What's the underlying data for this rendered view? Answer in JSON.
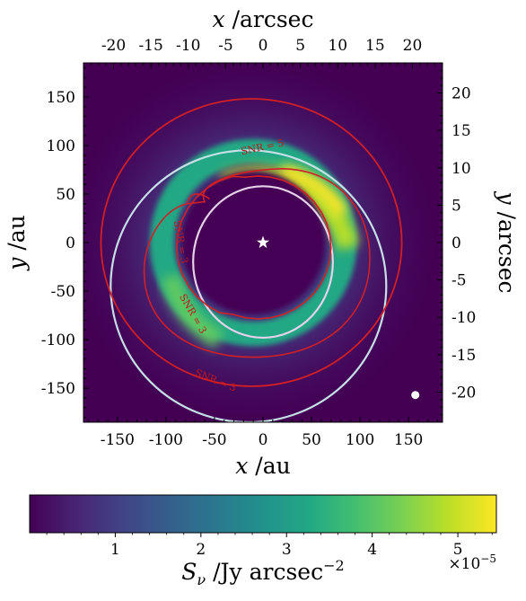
{
  "chart_data": {
    "type": "heatmap",
    "colormap": "viridis",
    "image": {
      "description_units": "au",
      "xlim": [
        -185,
        185
      ],
      "ylim": [
        -185,
        185
      ]
    },
    "axes": {
      "bottom": {
        "label_var": "x",
        "label_unit": " /au",
        "ticks": [
          -150,
          -100,
          -50,
          0,
          50,
          100,
          150
        ]
      },
      "left": {
        "label_var": "y",
        "label_unit": " /au",
        "ticks": [
          -150,
          -100,
          -50,
          0,
          50,
          100,
          150
        ]
      },
      "top": {
        "label_var": "x",
        "label_unit": " /arcsec",
        "ticks": [
          -20,
          -15,
          -10,
          -5,
          0,
          5,
          10,
          15,
          20
        ],
        "au_per_arcsec": 7.7
      },
      "right": {
        "label_var": "y",
        "label_unit": " /arcsec",
        "ticks": [
          -20,
          -15,
          -10,
          -5,
          0,
          5,
          10,
          15,
          20
        ],
        "au_per_arcsec": 7.7
      }
    },
    "star": {
      "x": 0,
      "y": 0,
      "color": "#ffffff"
    },
    "beam": {
      "x": 157,
      "y": -157,
      "color": "#ffffff"
    },
    "white_ellipses": [
      {
        "cx": 0,
        "cy": -20,
        "rx": 72,
        "ry": 78,
        "color": "#e6d2ea"
      },
      {
        "cx": -15,
        "cy": -45,
        "rx": 142,
        "ry": 140,
        "color": "#c6e0e8"
      }
    ],
    "ring": {
      "cx": -10,
      "cy": 0,
      "r_inner": 80,
      "r_outer": 108,
      "brightness_peak": "upper-right"
    },
    "contours": [
      {
        "name": "outer",
        "color": "#d21f26",
        "label": "SNR = 5"
      },
      {
        "name": "inner",
        "color": "#d21f26",
        "label": "SNR = 5"
      }
    ],
    "contour_labels": [
      "SNR = 5",
      "SNR = 3",
      "SNR = 3",
      "SNR = 3"
    ],
    "colorbar": {
      "label_var": "S",
      "label_sub": "ν",
      "label_unit": " /Jy arcsec",
      "label_exp": "−2",
      "range": [
        0.0,
        5.45
      ],
      "ticks": [
        1,
        2,
        3,
        4,
        5
      ],
      "multiplier_base": "×10",
      "multiplier_exp": "−5"
    }
  }
}
